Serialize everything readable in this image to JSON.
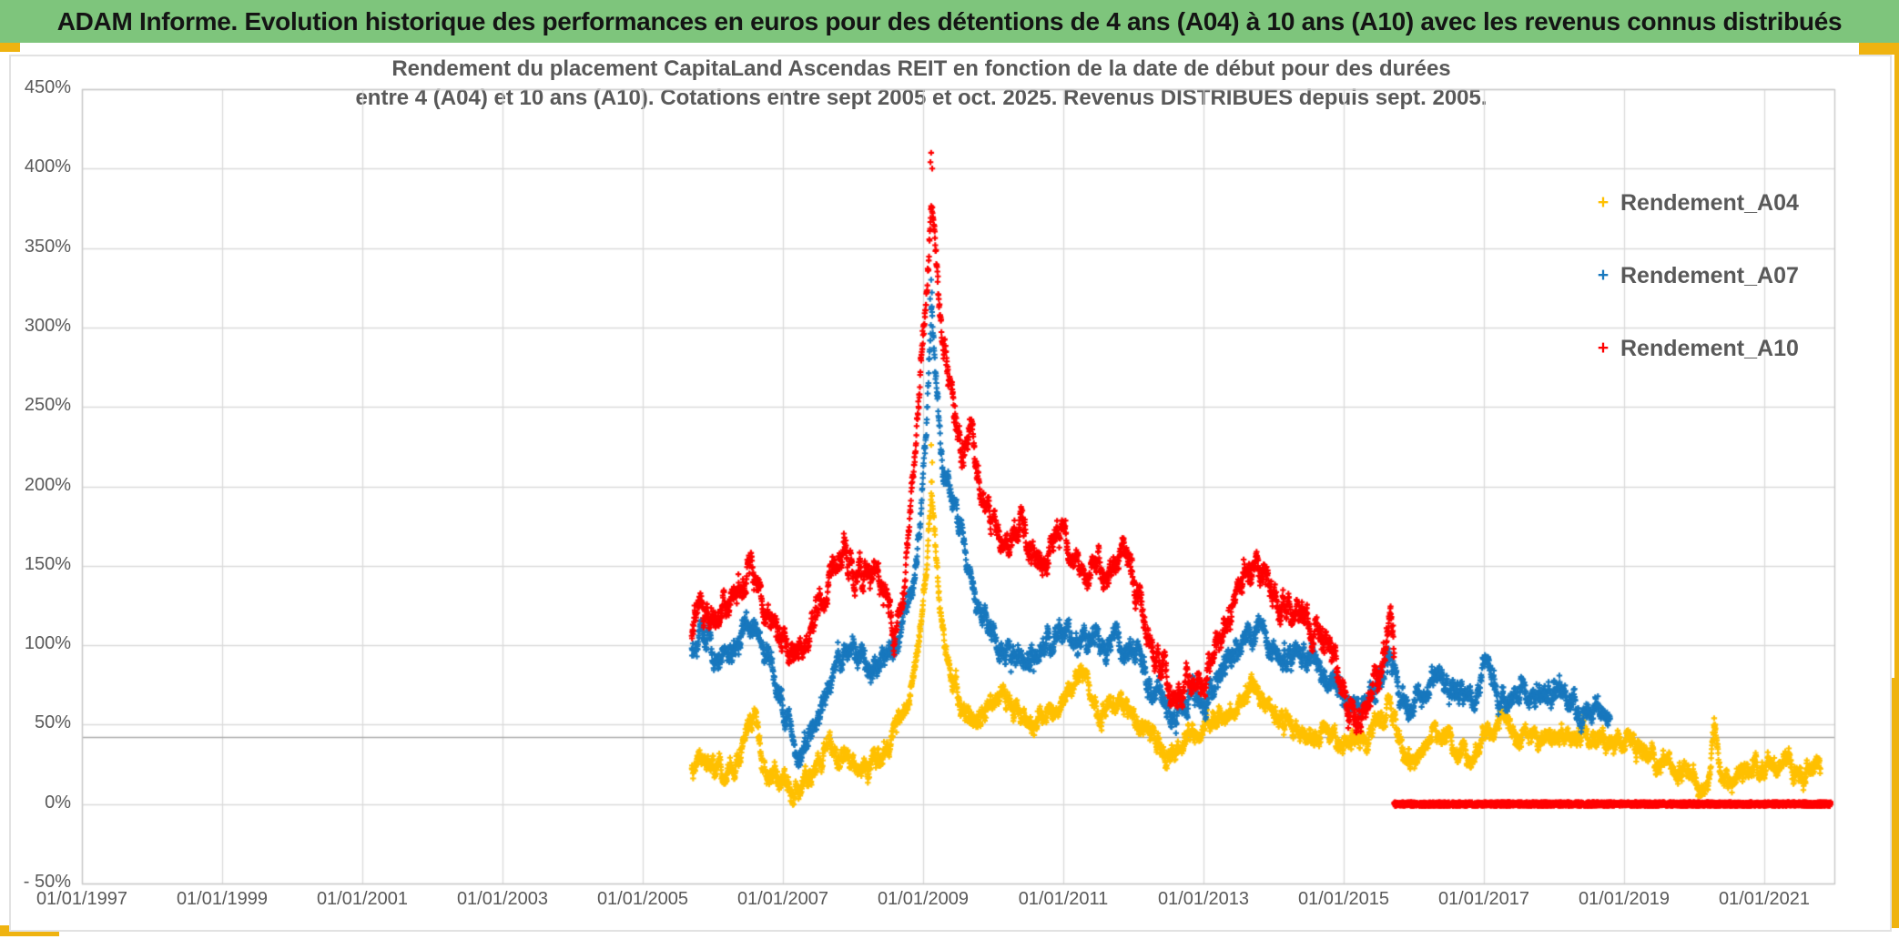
{
  "header": {
    "title": "ADAM Informe. Evolution historique des performances en euros pour des détentions de 4 ans (A04) à 10 ans (A10) avec les revenus connus distribués"
  },
  "colors": {
    "header_bg": "#7ec57c",
    "header_text": "#141414",
    "gold_accent": "#efb310",
    "grid": "#dadada",
    "plot_border": "#c9c9c9",
    "reference_line": "#ababab",
    "axis_text": "#595959",
    "series_a04": "#FFC000",
    "series_a07": "#1878BE",
    "series_a10": "#FF0000"
  },
  "chart_data": {
    "type": "scatter",
    "marker": "plus",
    "grid": true,
    "title_line1": "Rendement du placement CapitaLand Ascendas REIT en fonction de la date de début pour des durées",
    "title_line2": "entre 4 (A04) et 10 ans (A10). Cotations entre sept 2005 et oct. 2025. Revenus DISTRIBUES depuis sept. 2005.",
    "x_axis": {
      "range_years": [
        1997,
        2022
      ],
      "ticks": [
        {
          "label": "01/01/1997",
          "year": 1997
        },
        {
          "label": "01/01/1999",
          "year": 1999
        },
        {
          "label": "01/01/2001",
          "year": 2001
        },
        {
          "label": "01/01/2003",
          "year": 2003
        },
        {
          "label": "01/01/2005",
          "year": 2005
        },
        {
          "label": "01/01/2007",
          "year": 2007
        },
        {
          "label": "01/01/2009",
          "year": 2009
        },
        {
          "label": "01/01/2011",
          "year": 2011
        },
        {
          "label": "01/01/2013",
          "year": 2013
        },
        {
          "label": "01/01/2015",
          "year": 2015
        },
        {
          "label": "01/01/2017",
          "year": 2017
        },
        {
          "label": "01/01/2019",
          "year": 2019
        },
        {
          "label": "01/01/2021",
          "year": 2021
        }
      ]
    },
    "y_axis": {
      "range_pct": [
        -50,
        450
      ],
      "ticks": [
        {
          "label": "450%",
          "value": 450
        },
        {
          "label": "400%",
          "value": 400
        },
        {
          "label": "350%",
          "value": 350
        },
        {
          "label": "300%",
          "value": 300
        },
        {
          "label": "250%",
          "value": 250
        },
        {
          "label": "200%",
          "value": 200
        },
        {
          "label": "150%",
          "value": 150
        },
        {
          "label": "100%",
          "value": 100
        },
        {
          "label": "50%",
          "value": 50
        },
        {
          "label": "0%",
          "value": 0
        },
        {
          "label": "- 50%",
          "value": -50
        }
      ]
    },
    "reference_line_pct": 42,
    "legend": [
      {
        "label": "Rendement_A04",
        "color": "#FFC000"
      },
      {
        "label": "Rendement_A07",
        "color": "#1878BE"
      },
      {
        "label": "Rendement_A10",
        "color": "#FF0000"
      }
    ],
    "series": [
      {
        "name": "Rendement_A04",
        "color": "#FFC000",
        "spread": 6.5,
        "anchors": [
          [
            2005.7,
            18
          ],
          [
            2005.85,
            24
          ],
          [
            2006.0,
            27
          ],
          [
            2006.15,
            15
          ],
          [
            2006.3,
            22
          ],
          [
            2006.45,
            38
          ],
          [
            2006.6,
            54
          ],
          [
            2006.72,
            30
          ],
          [
            2006.85,
            22
          ],
          [
            2007.0,
            16
          ],
          [
            2007.2,
            7
          ],
          [
            2007.35,
            18
          ],
          [
            2007.5,
            28
          ],
          [
            2007.7,
            34
          ],
          [
            2007.9,
            30
          ],
          [
            2008.1,
            24
          ],
          [
            2008.3,
            28
          ],
          [
            2008.5,
            38
          ],
          [
            2008.7,
            52
          ],
          [
            2008.85,
            75
          ],
          [
            2008.95,
            105
          ],
          [
            2009.05,
            150
          ],
          [
            2009.12,
            200
          ],
          [
            2009.18,
            160
          ],
          [
            2009.28,
            105
          ],
          [
            2009.4,
            78
          ],
          [
            2009.55,
            62
          ],
          [
            2009.7,
            54
          ],
          [
            2009.85,
            58
          ],
          [
            2010.0,
            63
          ],
          [
            2010.2,
            68
          ],
          [
            2010.4,
            58
          ],
          [
            2010.55,
            50
          ],
          [
            2010.7,
            56
          ],
          [
            2010.9,
            60
          ],
          [
            2011.05,
            70
          ],
          [
            2011.2,
            84
          ],
          [
            2011.35,
            75
          ],
          [
            2011.5,
            58
          ],
          [
            2011.65,
            60
          ],
          [
            2011.8,
            65
          ],
          [
            2011.95,
            62
          ],
          [
            2012.15,
            48
          ],
          [
            2012.35,
            38
          ],
          [
            2012.55,
            30
          ],
          [
            2012.75,
            40
          ],
          [
            2012.95,
            48
          ],
          [
            2013.15,
            52
          ],
          [
            2013.35,
            58
          ],
          [
            2013.55,
            64
          ],
          [
            2013.75,
            68
          ],
          [
            2013.9,
            64
          ],
          [
            2014.1,
            56
          ],
          [
            2014.3,
            50
          ],
          [
            2014.5,
            46
          ],
          [
            2014.7,
            44
          ],
          [
            2014.9,
            40
          ],
          [
            2015.1,
            36
          ],
          [
            2015.3,
            42
          ],
          [
            2015.5,
            52
          ],
          [
            2015.66,
            58
          ],
          [
            2015.8,
            40
          ],
          [
            2015.95,
            28
          ],
          [
            2016.1,
            33
          ],
          [
            2016.3,
            44
          ],
          [
            2016.5,
            40
          ],
          [
            2016.7,
            32
          ],
          [
            2016.85,
            28
          ],
          [
            2017.0,
            40
          ],
          [
            2017.15,
            48
          ],
          [
            2017.3,
            50
          ],
          [
            2017.5,
            44
          ],
          [
            2017.7,
            46
          ],
          [
            2017.9,
            40
          ],
          [
            2018.1,
            46
          ],
          [
            2018.3,
            42
          ],
          [
            2018.5,
            44
          ],
          [
            2018.7,
            40
          ],
          [
            2018.9,
            42
          ],
          [
            2019.1,
            36
          ],
          [
            2019.3,
            30
          ],
          [
            2019.6,
            22
          ],
          [
            2019.9,
            16
          ],
          [
            2020.1,
            7
          ],
          [
            2020.2,
            4
          ],
          [
            2020.28,
            48
          ],
          [
            2020.38,
            18
          ],
          [
            2020.5,
            12
          ],
          [
            2020.65,
            18
          ],
          [
            2020.8,
            24
          ],
          [
            2021.0,
            22
          ],
          [
            2021.2,
            24
          ],
          [
            2021.4,
            20
          ],
          [
            2021.6,
            22
          ],
          [
            2021.8,
            20
          ]
        ],
        "outliers": [
          [
            2009.115,
            226
          ],
          [
            2009.13,
            215
          ],
          [
            2006.62,
            58
          ],
          [
            2020.285,
            54
          ],
          [
            2020.3,
            50
          ]
        ]
      },
      {
        "name": "Rendement_A07",
        "color": "#1878BE",
        "spread": 8,
        "anchors": [
          [
            2005.7,
            96
          ],
          [
            2005.85,
            106
          ],
          [
            2006.0,
            99
          ],
          [
            2006.15,
            88
          ],
          [
            2006.3,
            96
          ],
          [
            2006.45,
            105
          ],
          [
            2006.6,
            112
          ],
          [
            2006.75,
            95
          ],
          [
            2006.9,
            78
          ],
          [
            2007.05,
            58
          ],
          [
            2007.2,
            34
          ],
          [
            2007.35,
            45
          ],
          [
            2007.5,
            58
          ],
          [
            2007.7,
            85
          ],
          [
            2007.9,
            103
          ],
          [
            2008.1,
            92
          ],
          [
            2008.3,
            85
          ],
          [
            2008.5,
            96
          ],
          [
            2008.7,
            112
          ],
          [
            2008.85,
            140
          ],
          [
            2008.95,
            175
          ],
          [
            2009.05,
            240
          ],
          [
            2009.12,
            308
          ],
          [
            2009.18,
            265
          ],
          [
            2009.28,
            225
          ],
          [
            2009.4,
            195
          ],
          [
            2009.55,
            165
          ],
          [
            2009.7,
            135
          ],
          [
            2009.85,
            118
          ],
          [
            2010.0,
            108
          ],
          [
            2010.2,
            96
          ],
          [
            2010.4,
            88
          ],
          [
            2010.6,
            95
          ],
          [
            2010.8,
            102
          ],
          [
            2011.0,
            110
          ],
          [
            2011.2,
            98
          ],
          [
            2011.4,
            104
          ],
          [
            2011.6,
            96
          ],
          [
            2011.8,
            100
          ],
          [
            2012.0,
            98
          ],
          [
            2012.2,
            82
          ],
          [
            2012.4,
            66
          ],
          [
            2012.6,
            56
          ],
          [
            2012.8,
            68
          ],
          [
            2013.0,
            62
          ],
          [
            2013.2,
            80
          ],
          [
            2013.4,
            95
          ],
          [
            2013.6,
            102
          ],
          [
            2013.8,
            108
          ],
          [
            2014.0,
            98
          ],
          [
            2014.2,
            94
          ],
          [
            2014.4,
            98
          ],
          [
            2014.6,
            90
          ],
          [
            2014.8,
            80
          ],
          [
            2015.0,
            68
          ],
          [
            2015.2,
            58
          ],
          [
            2015.4,
            70
          ],
          [
            2015.55,
            82
          ],
          [
            2015.66,
            96
          ],
          [
            2015.8,
            72
          ],
          [
            2015.95,
            62
          ],
          [
            2016.1,
            66
          ],
          [
            2016.3,
            84
          ],
          [
            2016.5,
            72
          ],
          [
            2016.7,
            64
          ],
          [
            2016.9,
            70
          ],
          [
            2017.05,
            86
          ],
          [
            2017.2,
            72
          ],
          [
            2017.4,
            62
          ],
          [
            2017.6,
            70
          ],
          [
            2017.8,
            64
          ],
          [
            2018.0,
            74
          ],
          [
            2018.2,
            66
          ],
          [
            2018.4,
            60
          ],
          [
            2018.55,
            66
          ],
          [
            2018.7,
            60
          ],
          [
            2018.8,
            56
          ]
        ],
        "outliers": [
          [
            2009.115,
            330
          ],
          [
            2009.125,
            322
          ],
          [
            2009.1,
            318
          ]
        ]
      },
      {
        "name": "Rendement_A10",
        "color": "#FF0000",
        "spread": 9,
        "anchors": [
          [
            2005.7,
            112
          ],
          [
            2005.82,
            135
          ],
          [
            2005.95,
            115
          ],
          [
            2006.1,
            120
          ],
          [
            2006.25,
            128
          ],
          [
            2006.4,
            135
          ],
          [
            2006.55,
            150
          ],
          [
            2006.7,
            128
          ],
          [
            2006.85,
            115
          ],
          [
            2007.0,
            108
          ],
          [
            2007.15,
            95
          ],
          [
            2007.3,
            100
          ],
          [
            2007.45,
            118
          ],
          [
            2007.6,
            135
          ],
          [
            2007.75,
            148
          ],
          [
            2007.9,
            158
          ],
          [
            2008.05,
            145
          ],
          [
            2008.2,
            138
          ],
          [
            2008.35,
            146
          ],
          [
            2008.5,
            122
          ],
          [
            2008.62,
            108
          ],
          [
            2008.75,
            145
          ],
          [
            2008.85,
            205
          ],
          [
            2008.95,
            260
          ],
          [
            2009.05,
            325
          ],
          [
            2009.12,
            392
          ],
          [
            2009.2,
            335
          ],
          [
            2009.3,
            288
          ],
          [
            2009.42,
            252
          ],
          [
            2009.55,
            222
          ],
          [
            2009.68,
            240
          ],
          [
            2009.8,
            205
          ],
          [
            2009.95,
            182
          ],
          [
            2010.1,
            168
          ],
          [
            2010.25,
            158
          ],
          [
            2010.4,
            175
          ],
          [
            2010.55,
            152
          ],
          [
            2010.7,
            158
          ],
          [
            2010.85,
            165
          ],
          [
            2011.0,
            172
          ],
          [
            2011.15,
            150
          ],
          [
            2011.3,
            155
          ],
          [
            2011.45,
            160
          ],
          [
            2011.6,
            145
          ],
          [
            2011.75,
            148
          ],
          [
            2011.9,
            152
          ],
          [
            2012.05,
            128
          ],
          [
            2012.25,
            100
          ],
          [
            2012.45,
            78
          ],
          [
            2012.6,
            64
          ],
          [
            2012.8,
            82
          ],
          [
            2013.0,
            76
          ],
          [
            2013.2,
            102
          ],
          [
            2013.4,
            125
          ],
          [
            2013.6,
            148
          ],
          [
            2013.8,
            152
          ],
          [
            2013.95,
            138
          ],
          [
            2014.1,
            120
          ],
          [
            2014.3,
            130
          ],
          [
            2014.5,
            108
          ],
          [
            2014.65,
            115
          ],
          [
            2014.8,
            108
          ],
          [
            2014.95,
            88
          ],
          [
            2015.1,
            64
          ],
          [
            2015.25,
            56
          ],
          [
            2015.4,
            75
          ],
          [
            2015.55,
            92
          ],
          [
            2015.66,
            115
          ],
          [
            2015.72,
            95
          ]
        ],
        "outliers": [
          [
            2009.115,
            410
          ],
          [
            2009.105,
            404
          ],
          [
            2009.13,
            400
          ]
        ]
      }
    ],
    "flat_zero_segment": {
      "series": "Rendement_A10",
      "color": "#FF0000",
      "from_year": 2015.72,
      "to_year": 2021.95,
      "value_pct": 0
    }
  }
}
